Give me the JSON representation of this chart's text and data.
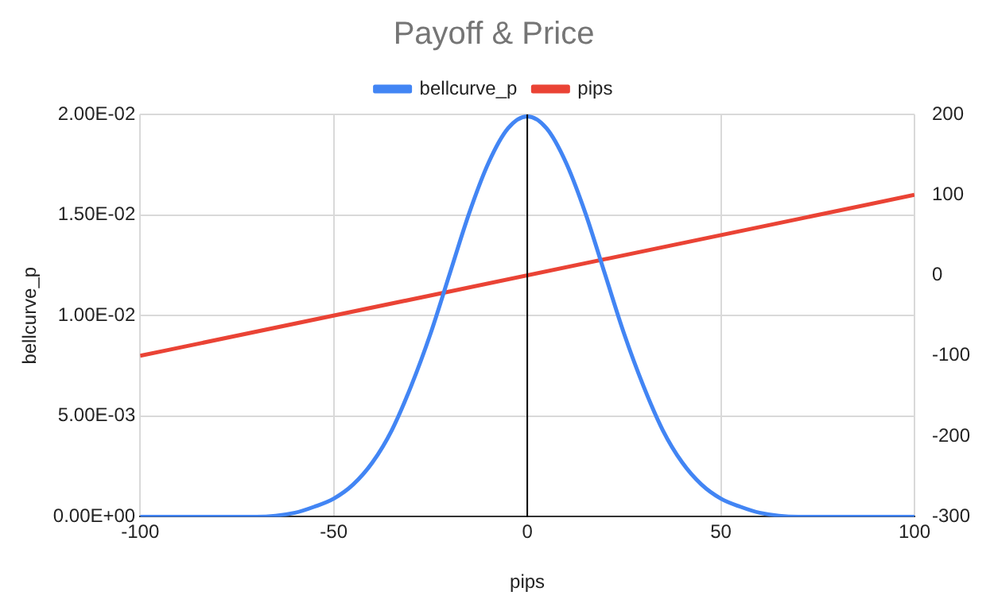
{
  "chart_data": {
    "type": "line",
    "title": "Payoff & Price",
    "xlabel": "pips",
    "ylabel": "bellcurve_p",
    "x": [
      -100,
      -90,
      -80,
      -70,
      -60,
      -55,
      -50,
      -45,
      -40,
      -35,
      -30,
      -25,
      -20,
      -15,
      -10,
      -5,
      0,
      5,
      10,
      15,
      20,
      25,
      30,
      35,
      40,
      45,
      50,
      55,
      60,
      70,
      80,
      90,
      100
    ],
    "series": [
      {
        "name": "bellcurve_p",
        "color": "#4285f4",
        "values": [
          0,
          0,
          0,
          0,
          0.0002,
          0.0005,
          0.0009,
          0.0016,
          0.0027,
          0.0043,
          0.0065,
          0.0091,
          0.0121,
          0.0151,
          0.0176,
          0.0193,
          0.0199,
          0.0193,
          0.0176,
          0.0151,
          0.0121,
          0.0091,
          0.0065,
          0.0043,
          0.0027,
          0.0016,
          0.0009,
          0.0005,
          0.0002,
          0,
          0,
          0,
          0
        ]
      },
      {
        "name": "pips",
        "color": "#ea4335",
        "axis": "y2",
        "x": [
          -100,
          100
        ],
        "values": [
          -100,
          100
        ]
      }
    ],
    "xlim": [
      -100,
      100
    ],
    "xticks": [
      -100,
      -50,
      0,
      50,
      100
    ],
    "ylim": [
      0,
      0.02
    ],
    "yticks": [
      {
        "value": 0,
        "label": "0.00E+00"
      },
      {
        "value": 0.005,
        "label": "5.00E-03"
      },
      {
        "value": 0.01,
        "label": "1.00E-02"
      },
      {
        "value": 0.015,
        "label": "1.50E-02"
      },
      {
        "value": 0.02,
        "label": "2.00E-02"
      }
    ],
    "y2lim": [
      -300,
      200
    ],
    "y2ticks": [
      -300,
      -200,
      -100,
      0,
      100,
      200
    ],
    "ref_lines": [
      {
        "axis": "x",
        "value": 0,
        "color": "#000000"
      }
    ],
    "grid": true,
    "legend": "top",
    "marker": "none"
  }
}
